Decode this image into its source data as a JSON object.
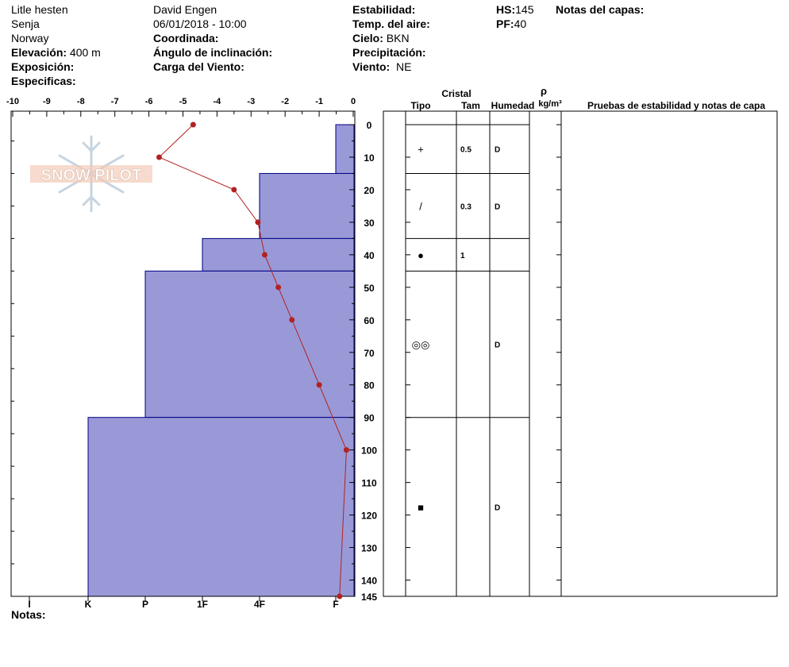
{
  "header": {
    "location": "Litle hesten",
    "range": "Senja",
    "country": "Norway",
    "elevation_label": "Elevación:",
    "elevation_value": "400 m",
    "exposure_label": "Exposición:",
    "specifics_label": "Especificas:",
    "observer": "David Engen",
    "datetime": "06/01/2018 - 10:00",
    "coord_label": "Coordinada:",
    "slope_label": "Ángulo de inclinación:",
    "wind_load_label": "Carga del Viento:",
    "stability_label": "Estabilidad:",
    "air_temp_label": "Temp. del aire:",
    "sky_label": "Cielo:",
    "sky_value": "BKN",
    "precip_label": "Precipitación:",
    "wind_label": "Viento:",
    "wind_value": "NE",
    "hs_label": "HS:",
    "hs_value": "145",
    "pf_label": "PF:",
    "pf_value": "40",
    "layer_notes_label": "Notas del capas:"
  },
  "logo_text": "SNOW PILOT",
  "notes_label": "Notas:",
  "table_headers": {
    "crystal": "Cristal",
    "type": "Tipo",
    "size": "Tam",
    "moisture": "Humedad",
    "rho": "ρ",
    "density_unit": "kg/m³",
    "tests": "Pruebas de estabilidad y notas de capa"
  },
  "chart_data": {
    "type": "line",
    "temp_axis": {
      "ticks": [
        "-10",
        "-9",
        "-8",
        "-7",
        "-6",
        "-5",
        "-4",
        "-3",
        "-2",
        "-1",
        "0"
      ],
      "range": [
        -10,
        0
      ]
    },
    "depth_axis": {
      "ticks": [
        "0",
        "10",
        "20",
        "30",
        "40",
        "50",
        "60",
        "70",
        "80",
        "90",
        "100",
        "110",
        "120",
        "130",
        "140",
        "145"
      ],
      "range": [
        0,
        145
      ]
    },
    "hardness_axis": {
      "ticks": [
        "I",
        "K",
        "P",
        "1F",
        "4F",
        "F"
      ]
    },
    "hardness_profile": [
      {
        "top": 0,
        "bottom": 15,
        "hardness": "F"
      },
      {
        "top": 15,
        "bottom": 35,
        "hardness": "1F/4F"
      },
      {
        "top": 35,
        "bottom": 45,
        "hardness": "P/1F"
      },
      {
        "top": 45,
        "bottom": 90,
        "hardness": "P"
      },
      {
        "top": 90,
        "bottom": 145,
        "hardness": "K"
      }
    ],
    "temperature_profile": [
      {
        "depth": 0,
        "temp": -4.7
      },
      {
        "depth": 10,
        "temp": -5.7
      },
      {
        "depth": 20,
        "temp": -3.5
      },
      {
        "depth": 30,
        "temp": -2.8
      },
      {
        "depth": 40,
        "temp": -2.6
      },
      {
        "depth": 50,
        "temp": -2.2
      },
      {
        "depth": 60,
        "temp": -1.8
      },
      {
        "depth": 80,
        "temp": -1.0
      },
      {
        "depth": 100,
        "temp": -0.2
      },
      {
        "depth": 145,
        "temp": -0.4
      }
    ],
    "layers": [
      {
        "top": 0,
        "bottom": 15,
        "type": "+",
        "size": "0.5",
        "moisture": "D"
      },
      {
        "top": 15,
        "bottom": 35,
        "type": "/",
        "size": "0.3",
        "moisture": "D"
      },
      {
        "top": 35,
        "bottom": 45,
        "type": "●",
        "size": "1",
        "moisture": ""
      },
      {
        "top": 45,
        "bottom": 90,
        "type": "◎◎",
        "size": "",
        "moisture": "D"
      },
      {
        "top": 90,
        "bottom": 145,
        "type": "■",
        "size": "",
        "moisture": "D"
      }
    ],
    "colors": {
      "hardness_fill": "#9a99d8",
      "hardness_edge": "#000080",
      "temp_line": "#b22222"
    }
  }
}
